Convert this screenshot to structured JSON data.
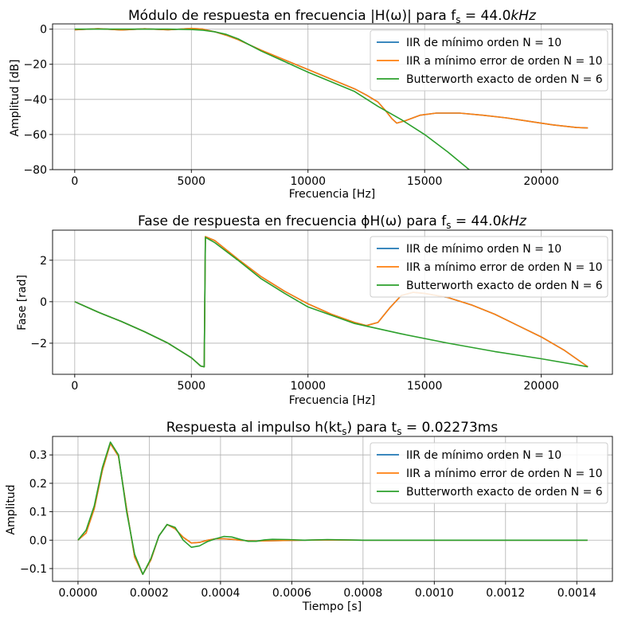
{
  "colors": {
    "iir_min": "#1f77b4",
    "iir_err": "#ff7f0e",
    "butter": "#2ca02c",
    "grid": "#b0b0b0"
  },
  "chart_data": [
    {
      "type": "line",
      "title": "Módulo de respuesta en frecuencia |H(ω)| para f",
      "title_sub": "s",
      "title_eq": " = 44.0",
      "title_unit": "kHz",
      "xlabel": "Frecuencia [Hz]",
      "ylabel": "Amplitud [dB]",
      "xlim": [
        -950,
        23050
      ],
      "ylim": [
        -80,
        3
      ],
      "xticks": [
        0,
        5000,
        10000,
        15000,
        20000
      ],
      "xtick_labels": [
        "0",
        "5000",
        "10000",
        "15000",
        "20000"
      ],
      "yticks": [
        0,
        -20,
        -40,
        -60,
        -80
      ],
      "ytick_labels": [
        "0",
        "−20",
        "−40",
        "−60",
        "−80"
      ],
      "grid": true,
      "legend": "upper-right",
      "series": [
        {
          "name": "IIR de mínimo orden N = 10",
          "color": "#1f77b4",
          "x": [
            0,
            1000,
            2000,
            3000,
            4000,
            5000,
            5500,
            6000,
            6500,
            7000,
            8000,
            9000,
            10000,
            11000,
            12000,
            12500,
            13000,
            13300,
            13600,
            13800,
            14200,
            14800,
            15500,
            16500,
            17500,
            18500,
            19500,
            20500,
            21500,
            22000
          ],
          "y": [
            -0.4,
            0.3,
            -0.5,
            0.2,
            -0.4,
            0.4,
            0,
            -1.5,
            -3.5,
            -6,
            -12,
            -17.5,
            -23,
            -28.5,
            -34,
            -37.5,
            -41.5,
            -46,
            -51,
            -53.5,
            -52,
            -49,
            -47.8,
            -47.8,
            -49,
            -50.5,
            -52.5,
            -54.5,
            -56,
            -56.3
          ]
        },
        {
          "name": "IIR a mínimo error de orden N = 10",
          "color": "#ff7f0e",
          "x": [
            0,
            1000,
            2000,
            3000,
            4000,
            5000,
            5500,
            6000,
            6500,
            7000,
            8000,
            9000,
            10000,
            11000,
            12000,
            12500,
            13000,
            13300,
            13600,
            13800,
            14200,
            14800,
            15500,
            16500,
            17500,
            18500,
            19500,
            20500,
            21500,
            22000
          ],
          "y": [
            -0.4,
            0.3,
            -0.5,
            0.2,
            -0.4,
            0.4,
            0,
            -1.5,
            -3.5,
            -6,
            -12,
            -17.5,
            -23,
            -28.5,
            -34,
            -37.5,
            -41.5,
            -46,
            -51,
            -53.5,
            -52,
            -49,
            -47.8,
            -47.8,
            -49,
            -50.5,
            -52.5,
            -54.5,
            -56,
            -56.3
          ]
        },
        {
          "name": "Butterworth exacto de orden N = 6",
          "color": "#2ca02c",
          "x": [
            0,
            2000,
            4000,
            5000,
            5500,
            6000,
            6500,
            7000,
            7500,
            8000,
            9000,
            10000,
            11000,
            12000,
            13000,
            14000,
            15000,
            16000,
            17000
          ],
          "y": [
            0,
            0,
            0,
            -0.2,
            -0.6,
            -1.5,
            -3,
            -5.5,
            -9,
            -12.5,
            -18.5,
            -24.5,
            -30,
            -35.5,
            -44,
            -51.5,
            -60,
            -70,
            -81
          ]
        }
      ]
    },
    {
      "type": "line",
      "title": "Fase de respuesta en frecuencia ϕH(ω) para f",
      "title_sub": "s",
      "title_eq": " = 44.0",
      "title_unit": "kHz",
      "xlabel": "Frecuencia [Hz]",
      "ylabel": "Fase [rad]",
      "xlim": [
        -950,
        23050
      ],
      "ylim": [
        -3.5,
        3.45
      ],
      "xticks": [
        0,
        5000,
        10000,
        15000,
        20000
      ],
      "xtick_labels": [
        "0",
        "5000",
        "10000",
        "15000",
        "20000"
      ],
      "yticks": [
        2,
        0,
        -2
      ],
      "ytick_labels": [
        "2",
        "0",
        "−2"
      ],
      "grid": true,
      "legend": "upper-right",
      "series": [
        {
          "name": "IIR de mínimo orden N = 10",
          "color": "#1f77b4",
          "x": [
            0,
            1000,
            2000,
            3000,
            4000,
            5000,
            5400,
            5550,
            5600,
            6000,
            7000,
            8000,
            9000,
            10000,
            11000,
            12000,
            12500,
            13000,
            13500,
            14000,
            14500,
            15000,
            16000,
            17000,
            18000,
            19000,
            20000,
            21000,
            22000
          ],
          "y": [
            0,
            -0.5,
            -0.95,
            -1.45,
            -2,
            -2.7,
            -3.1,
            -3.14,
            3.14,
            2.95,
            2.05,
            1.2,
            0.5,
            -0.1,
            -0.6,
            -1,
            -1.15,
            -1.0,
            -0.3,
            0.3,
            0.45,
            0.4,
            0.2,
            -0.15,
            -0.6,
            -1.15,
            -1.7,
            -2.35,
            -3.14
          ]
        },
        {
          "name": "IIR a mínimo error de orden N = 10",
          "color": "#ff7f0e",
          "x": [
            0,
            1000,
            2000,
            3000,
            4000,
            5000,
            5400,
            5550,
            5600,
            6000,
            7000,
            8000,
            9000,
            10000,
            11000,
            12000,
            12500,
            13000,
            13500,
            14000,
            14500,
            15000,
            16000,
            17000,
            18000,
            19000,
            20000,
            21000,
            22000
          ],
          "y": [
            0,
            -0.5,
            -0.95,
            -1.45,
            -2,
            -2.7,
            -3.1,
            -3.14,
            3.14,
            2.95,
            2.05,
            1.2,
            0.5,
            -0.1,
            -0.6,
            -1,
            -1.15,
            -1.0,
            -0.3,
            0.3,
            0.45,
            0.4,
            0.2,
            -0.15,
            -0.6,
            -1.15,
            -1.7,
            -2.35,
            -3.14
          ]
        },
        {
          "name": "Butterworth exacto de orden N = 6",
          "color": "#2ca02c",
          "x": [
            0,
            1000,
            2000,
            3000,
            4000,
            5000,
            5400,
            5550,
            5600,
            6000,
            7000,
            8000,
            9000,
            10000,
            12000,
            14000,
            16000,
            18000,
            20000,
            22000
          ],
          "y": [
            0,
            -0.5,
            -0.95,
            -1.45,
            -2,
            -2.7,
            -3.1,
            -3.14,
            3.1,
            2.85,
            2.0,
            1.1,
            0.4,
            -0.25,
            -1.05,
            -1.55,
            -2.0,
            -2.4,
            -2.75,
            -3.14
          ]
        }
      ]
    },
    {
      "type": "line",
      "title": "Respuesta al impulso h(kt",
      "title_sub": "s",
      "title_eq": ") para t",
      "title_sub2": "s",
      "title_unit": " = 0.02273ms",
      "xlabel": "Tiempo [s]",
      "ylabel": "Amplitud",
      "xlim": [
        -7.14e-05,
        0.0015
      ],
      "ylim": [
        -0.145,
        0.365
      ],
      "xticks": [
        0,
        0.0002,
        0.0004,
        0.0006,
        0.0008,
        0.001,
        0.0012,
        0.0014
      ],
      "xtick_labels": [
        "0.0000",
        "0.0002",
        "0.0004",
        "0.0006",
        "0.0008",
        "0.0010",
        "0.0012",
        "0.0014"
      ],
      "yticks": [
        0.3,
        0.2,
        0.1,
        0.0,
        -0.1
      ],
      "ytick_labels": [
        "0.3",
        "0.2",
        "0.1",
        "0.0",
        "−0.1"
      ],
      "grid": true,
      "legend": "upper-right",
      "series": [
        {
          "name": "IIR de mínimo orden N = 10",
          "color": "#1f77b4",
          "x": [
            0,
            2.27e-05,
            4.55e-05,
            6.82e-05,
            9.09e-05,
            0.0001136,
            0.0001364,
            0.0001591,
            0.0001818,
            0.0002045,
            0.0002273,
            0.00025,
            0.0002727,
            0.0002955,
            0.0003182,
            0.0003409,
            0.0003636,
            0.0003864,
            0.0004091,
            0.0004318,
            0.0004545,
            0.0004773,
            0.0005,
            0.0005455,
            0.0005909,
            0.0006364,
            0.0007,
            0.0008,
            0.001,
            0.0012,
            0.00143
          ],
          "y": [
            0,
            0.025,
            0.11,
            0.245,
            0.34,
            0.295,
            0.11,
            -0.06,
            -0.12,
            -0.07,
            0.015,
            0.055,
            0.04,
            0.01,
            -0.01,
            -0.008,
            0.0,
            0.005,
            0.005,
            0.003,
            0.0,
            -0.002,
            -0.003,
            -0.002,
            -0.001,
            0.0,
            0.001,
            0.0,
            0.0,
            0.0,
            0.0
          ]
        },
        {
          "name": "IIR a mínimo error de orden N = 10",
          "color": "#ff7f0e",
          "x": [
            0,
            2.27e-05,
            4.55e-05,
            6.82e-05,
            9.09e-05,
            0.0001136,
            0.0001364,
            0.0001591,
            0.0001818,
            0.0002045,
            0.0002273,
            0.00025,
            0.0002727,
            0.0002955,
            0.0003182,
            0.0003409,
            0.0003636,
            0.0003864,
            0.0004091,
            0.0004318,
            0.0004545,
            0.0004773,
            0.0005,
            0.0005455,
            0.0005909,
            0.0006364,
            0.0007,
            0.0008,
            0.001,
            0.0012,
            0.00143
          ],
          "y": [
            0,
            0.025,
            0.11,
            0.245,
            0.34,
            0.295,
            0.11,
            -0.06,
            -0.12,
            -0.07,
            0.015,
            0.055,
            0.04,
            0.01,
            -0.01,
            -0.008,
            0.0,
            0.005,
            0.005,
            0.003,
            0.0,
            -0.002,
            -0.003,
            -0.002,
            -0.001,
            0.0,
            0.001,
            0.0,
            0.0,
            0.0,
            0.0
          ]
        },
        {
          "name": "Butterworth exacto de orden N = 6",
          "color": "#2ca02c",
          "x": [
            0,
            2.27e-05,
            4.55e-05,
            6.82e-05,
            9.09e-05,
            0.0001136,
            0.0001364,
            0.0001591,
            0.0001818,
            0.0002045,
            0.0002273,
            0.00025,
            0.0002727,
            0.0002955,
            0.0003182,
            0.0003409,
            0.0003636,
            0.0003864,
            0.0004091,
            0.0004318,
            0.0004545,
            0.0004773,
            0.0005,
            0.0005227,
            0.0005455,
            0.0005909,
            0.0006364,
            0.0007,
            0.0008,
            0.001,
            0.0012,
            0.00143
          ],
          "y": [
            0,
            0.035,
            0.12,
            0.255,
            0.345,
            0.3,
            0.1,
            -0.05,
            -0.12,
            -0.065,
            0.015,
            0.055,
            0.045,
            0.0,
            -0.025,
            -0.02,
            -0.005,
            0.005,
            0.013,
            0.011,
            0.003,
            -0.004,
            -0.004,
            0.001,
            0.003,
            0.002,
            0.0,
            0.002,
            0.0,
            0.0,
            0.0,
            0.0
          ]
        }
      ]
    }
  ]
}
